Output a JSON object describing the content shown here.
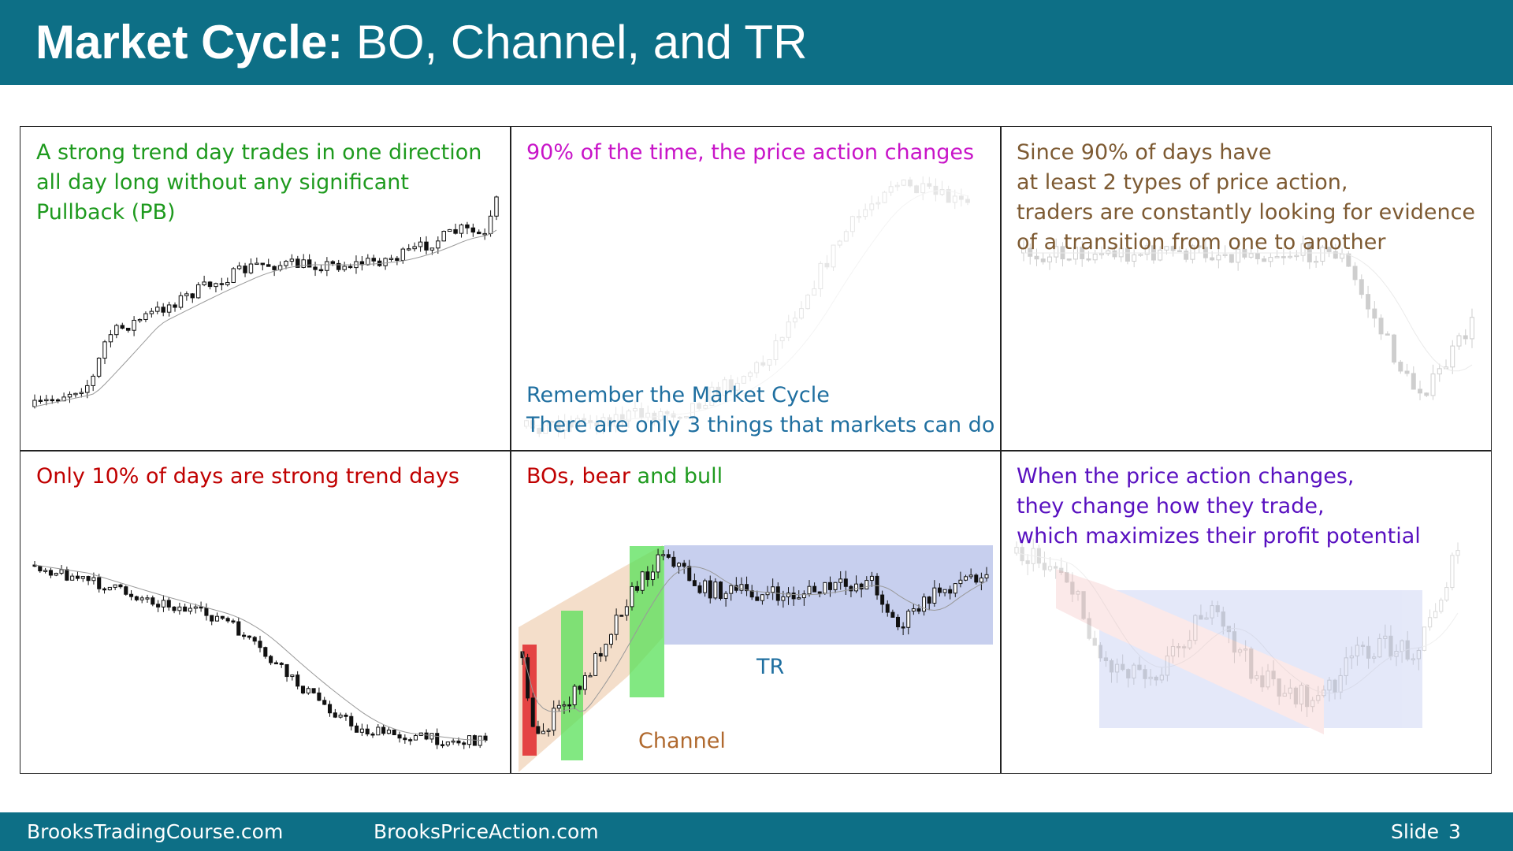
{
  "header": {
    "title_bold": "Market Cycle:",
    "title_rest": "BO, Channel, and TR"
  },
  "panels": [
    {
      "lines": [
        "A strong trend day trades in one direction",
        "all day long without any significant",
        "Pullback (PB)"
      ]
    },
    {
      "lines": [
        "90% of the time, the price action changes"
      ],
      "footer_lines": [
        "Remember the Market Cycle",
        "There are only 3 things that markets can do"
      ]
    },
    {
      "lines": [
        "Since 90% of days have",
        "at least 2 types of price action,",
        "traders are constantly looking for evidence",
        "of a transition from one to another"
      ]
    },
    {
      "lines": [
        "Only 10% of days are strong trend days"
      ]
    },
    {
      "title_parts": [
        "BOs, bear",
        "and bull"
      ],
      "labels": {
        "tr": "TR",
        "channel": "Channel"
      }
    },
    {
      "lines": [
        "When the price action changes,",
        "they change how they trade,",
        "which maximizes their profit potential"
      ]
    }
  ],
  "footer": {
    "site1": "BrooksTradingCourse.com",
    "site2": "BrooksPriceAction.com",
    "slide_label": "Slide",
    "slide_number": 3
  }
}
